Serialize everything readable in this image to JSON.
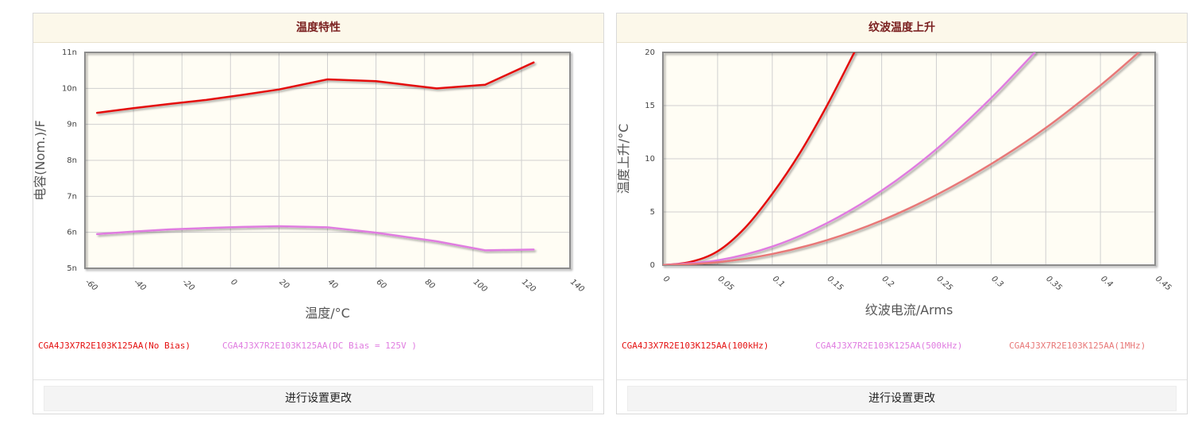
{
  "charts": [
    {
      "title": "温度特性",
      "button_label": "进行设置更改",
      "legend": [
        {
          "label": "CGA4J3X7R2E103K125AA(No Bias)",
          "color": "#e41010"
        },
        {
          "label": "CGA4J3X7R2E103K125AA(DC Bias = 125V )",
          "color": "#e07ce0"
        }
      ]
    },
    {
      "title": "纹波温度上升",
      "button_label": "进行设置更改",
      "legend": [
        {
          "label": "CGA4J3X7R2E103K125AA(100kHz)",
          "color": "#e41010"
        },
        {
          "label": "CGA4J3X7R2E103K125AA(500kHz)",
          "color": "#e07ce0"
        },
        {
          "label": "CGA4J3X7R2E103K125AA(1MHz)",
          "color": "#e87878"
        }
      ]
    }
  ],
  "chart_data": [
    {
      "type": "line",
      "title": "温度特性",
      "xlabel": "温度/°C",
      "ylabel": "电容(Nom.)/F",
      "xlim": [
        -60,
        140
      ],
      "ylim": [
        5e-09,
        1.1e-08
      ],
      "x_ticks": [
        -60,
        -40,
        -20,
        0,
        20,
        40,
        60,
        80,
        100,
        120,
        140
      ],
      "x_tick_labels": [
        "-60",
        "-40",
        "-20",
        "0",
        "20",
        "40",
        "60",
        "80",
        "100",
        "120",
        "140"
      ],
      "y_ticks": [
        5e-09,
        6e-09,
        7e-09,
        8e-09,
        9e-09,
        1e-08,
        1.1e-08
      ],
      "y_tick_labels": [
        "5n",
        "6n",
        "7n",
        "8n",
        "9n",
        "10n",
        "11n"
      ],
      "grid": true,
      "legend_position": "bottom",
      "series": [
        {
          "name": "CGA4J3X7R2E103K125AA(No Bias)",
          "color": "#e41010",
          "x": [
            -55,
            -40,
            -25,
            -10,
            5,
            20,
            40,
            60,
            85,
            105,
            125
          ],
          "y": [
            9.32e-09,
            9.45e-09,
            9.57e-09,
            9.68e-09,
            9.82e-09,
            9.97e-09,
            1.025e-08,
            1.02e-08,
            1e-08,
            1.01e-08,
            1.072e-08
          ]
        },
        {
          "name": "CGA4J3X7R2E103K125AA(DC Bias = 125V )",
          "color": "#e07ce0",
          "x": [
            -55,
            -40,
            -25,
            -10,
            5,
            20,
            40,
            60,
            85,
            105,
            125
          ],
          "y": [
            5.95e-09,
            6.02e-09,
            6.08e-09,
            6.12e-09,
            6.15e-09,
            6.17e-09,
            6.14e-09,
            5.99e-09,
            5.75e-09,
            5.5e-09,
            5.52e-09
          ]
        }
      ]
    },
    {
      "type": "line",
      "title": "纹波温度上升",
      "xlabel": "纹波电流/Arms",
      "ylabel": "温度上升/°C",
      "xlim": [
        0,
        0.45
      ],
      "ylim": [
        0,
        20
      ],
      "x_ticks": [
        0,
        0.05,
        0.1,
        0.15,
        0.2,
        0.25,
        0.3,
        0.35,
        0.4,
        0.45
      ],
      "x_tick_labels": [
        "0",
        "0.05",
        "0.1",
        "0.15",
        "0.2",
        "0.25",
        "0.3",
        "0.35",
        "0.4",
        "0.45"
      ],
      "y_ticks": [
        0,
        5,
        10,
        15,
        20
      ],
      "y_tick_labels": [
        "0",
        "5",
        "10",
        "15",
        "20"
      ],
      "grid": true,
      "legend_position": "bottom",
      "series": [
        {
          "name": "CGA4J3X7R2E103K125AA(100kHz)",
          "color": "#e41010",
          "x": [
            0,
            0.025,
            0.05,
            0.075,
            0.1,
            0.125,
            0.15,
            0.175
          ],
          "y": [
            0,
            0.3,
            1.3,
            3.5,
            6.7,
            10.5,
            15.0,
            20.0
          ]
        },
        {
          "name": "CGA4J3X7R2E103K125AA(500kHz)",
          "color": "#e07ce0",
          "x": [
            0,
            0.05,
            0.1,
            0.15,
            0.2,
            0.25,
            0.3,
            0.34
          ],
          "y": [
            0,
            0.45,
            1.75,
            3.95,
            7.0,
            10.9,
            15.7,
            20.0
          ]
        },
        {
          "name": "CGA4J3X7R2E103K125AA(1MHz)",
          "color": "#e87878",
          "x": [
            0,
            0.05,
            0.1,
            0.15,
            0.2,
            0.25,
            0.3,
            0.35,
            0.4,
            0.435
          ],
          "y": [
            0,
            0.27,
            1.05,
            2.35,
            4.2,
            6.6,
            9.5,
            12.9,
            16.9,
            20.0
          ]
        }
      ]
    }
  ]
}
